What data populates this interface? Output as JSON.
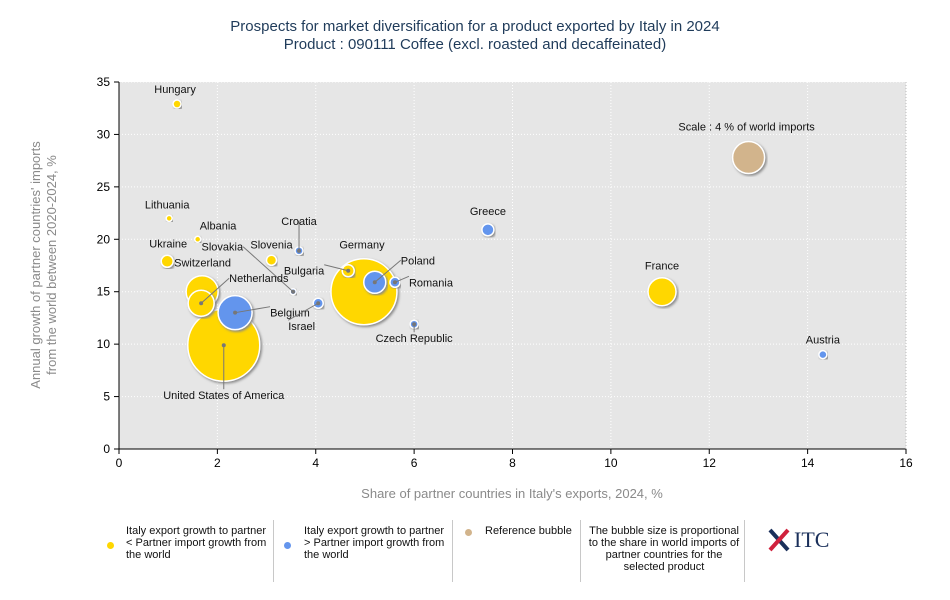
{
  "title": {
    "line1": "Prospects for market diversification for a product exported by Italy in 2024",
    "line2": "Product : 090111 Coffee (excl. roasted and decaffeinated)"
  },
  "chart_data": {
    "type": "scatter",
    "subtype": "bubble",
    "xlabel": "Share of partner countries in Italy's exports, 2024, %",
    "ylabel_line1": "Annual growth of partner countries' imports",
    "ylabel_line2": "from the world between 2020-2024, %",
    "xlim": [
      0,
      16
    ],
    "ylim": [
      0,
      35
    ],
    "xticks": [
      "0",
      "2",
      "4",
      "6",
      "8",
      "10",
      "12",
      "14",
      "16"
    ],
    "yticks": [
      "0",
      "5",
      "10",
      "15",
      "20",
      "25",
      "30",
      "35"
    ],
    "grid": true,
    "colors": {
      "yellow": "#ffd700",
      "blue": "#6495ed",
      "reference": "#d2b48c"
    },
    "points": [
      {
        "name": "Hungary",
        "x": 1.18,
        "y": 32.9,
        "size": 4,
        "group": "yellow"
      },
      {
        "name": "Lithuania",
        "x": 1.02,
        "y": 22.0,
        "size": 3,
        "group": "yellow"
      },
      {
        "name": "Albania",
        "x": 1.6,
        "y": 20.0,
        "size": 3,
        "group": "yellow"
      },
      {
        "name": "Ukraine",
        "x": 0.98,
        "y": 17.9,
        "size": 6,
        "group": "yellow"
      },
      {
        "name": "Slovenia",
        "x": 3.1,
        "y": 18.0,
        "size": 5,
        "group": "yellow"
      },
      {
        "name": "Croatia",
        "x": 3.66,
        "y": 18.9,
        "size": 4,
        "group": "blue"
      },
      {
        "name": "Slovakia",
        "x": 3.54,
        "y": 15.0,
        "size": 3,
        "group": "blue"
      },
      {
        "name": "Switzerland",
        "x": 1.69,
        "y": 15.0,
        "size": 16,
        "group": "yellow"
      },
      {
        "name": "Netherlands",
        "x": 1.67,
        "y": 13.9,
        "size": 13,
        "group": "yellow"
      },
      {
        "name": "United States of America",
        "x": 2.13,
        "y": 9.9,
        "size": 36,
        "group": "yellow"
      },
      {
        "name": "Belgium",
        "x": 2.36,
        "y": 13.0,
        "size": 17,
        "group": "blue"
      },
      {
        "name": "Israel",
        "x": 4.05,
        "y": 13.9,
        "size": 5,
        "group": "blue"
      },
      {
        "name": "Germany",
        "x": 4.98,
        "y": 15.0,
        "size": 33,
        "group": "yellow"
      },
      {
        "name": "Bulgaria",
        "x": 4.66,
        "y": 17.0,
        "size": 6,
        "group": "yellow"
      },
      {
        "name": "Poland",
        "x": 5.2,
        "y": 15.9,
        "size": 11,
        "group": "blue"
      },
      {
        "name": "Romania",
        "x": 5.61,
        "y": 15.9,
        "size": 5,
        "group": "blue"
      },
      {
        "name": "Czech Republic",
        "x": 6.0,
        "y": 11.9,
        "size": 4,
        "group": "blue"
      },
      {
        "name": "Greece",
        "x": 7.5,
        "y": 20.9,
        "size": 6,
        "group": "blue"
      },
      {
        "name": "France",
        "x": 11.04,
        "y": 15.0,
        "size": 14,
        "group": "yellow"
      },
      {
        "name": "Austria",
        "x": 14.31,
        "y": 9.0,
        "size": 4,
        "group": "blue"
      },
      {
        "name": "Scale : 4 % of world imports",
        "x": 12.8,
        "y": 27.8,
        "size": 16,
        "group": "reference"
      }
    ]
  },
  "legend": {
    "yellow": "Italy export growth to partner < Partner import growth from the world",
    "blue": "Italy export growth to partner > Partner import growth from the world",
    "reference": "Reference bubble",
    "note": "The bubble size is proportional to the share in world imports of partner countries for the selected product",
    "logo": "ITC"
  }
}
